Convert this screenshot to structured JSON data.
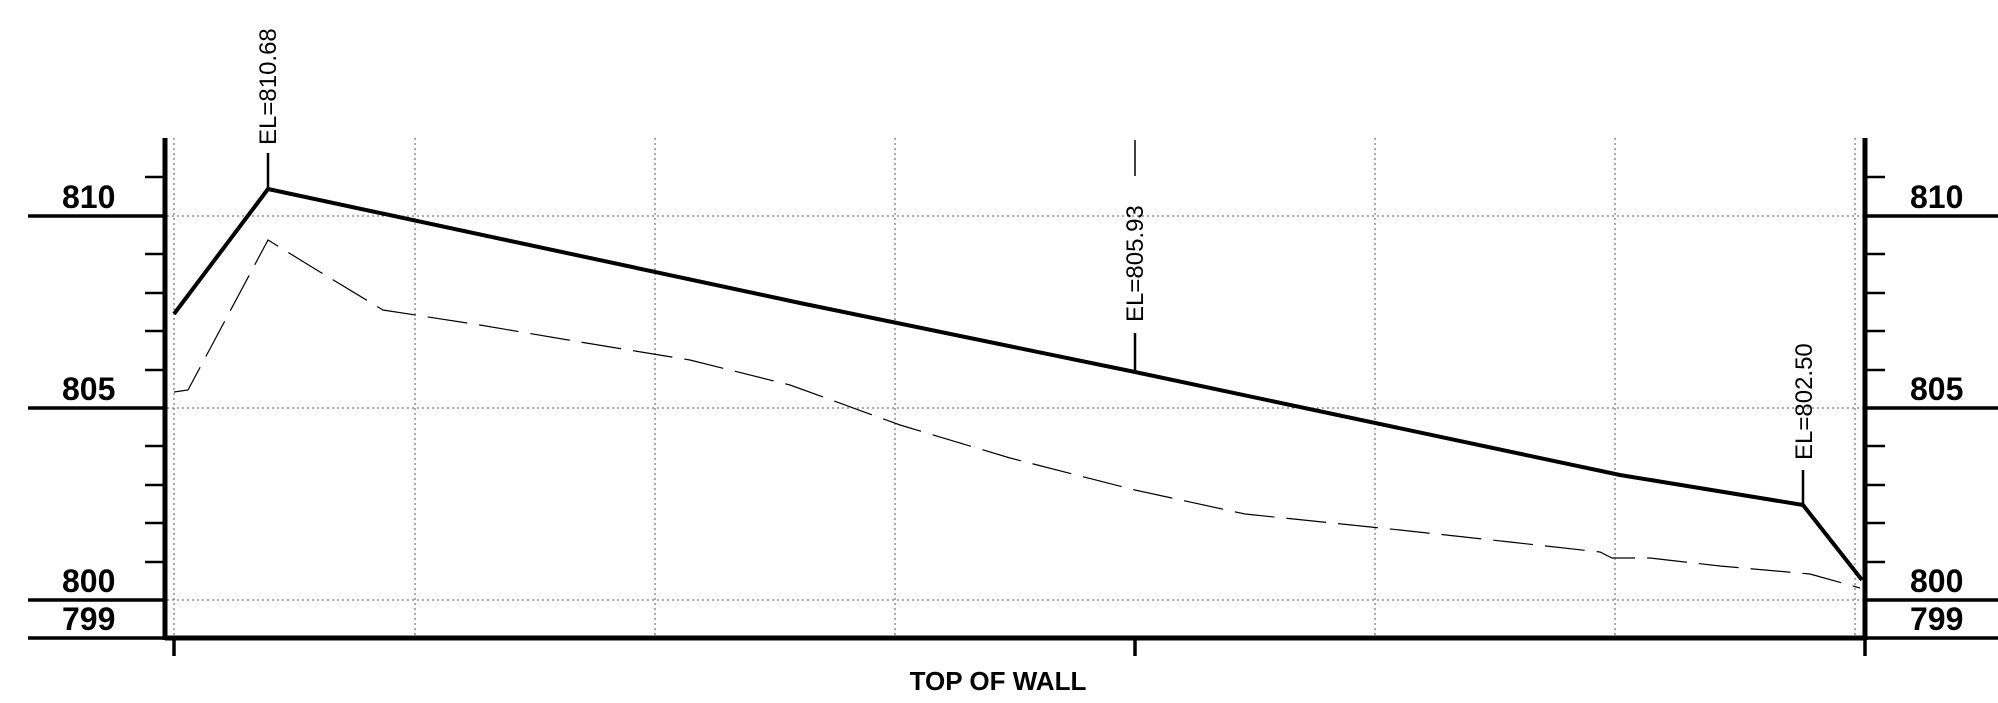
{
  "profile": {
    "title": "TOP OF WALL",
    "elevation_labels": [
      "810",
      "805",
      "800",
      "799"
    ],
    "callouts": [
      "EL=810.68",
      "EL=805.93",
      "EL=802.50"
    ],
    "elevation_range": [
      799,
      810
    ],
    "major_elevations": [
      799,
      800,
      805,
      810
    ],
    "line_styles": {
      "top_of_wall": "solid-thick",
      "existing_ground": "dashed"
    }
  }
}
